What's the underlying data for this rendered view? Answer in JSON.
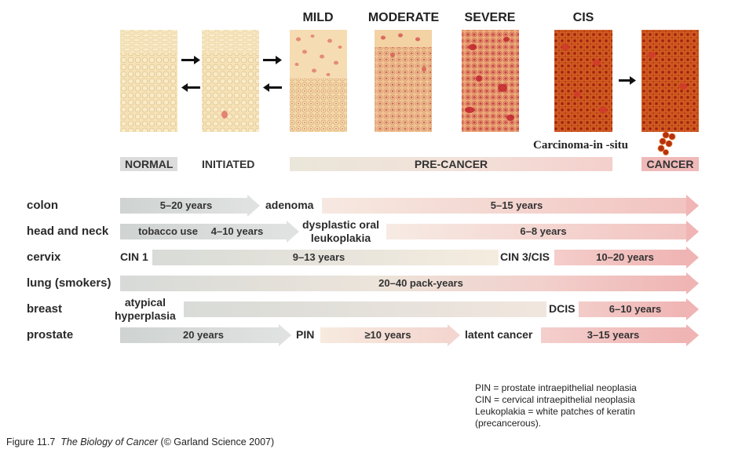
{
  "stages_top": [
    {
      "key": "mild",
      "label": "MILD"
    },
    {
      "key": "moderate",
      "label": "MODERATE"
    },
    {
      "key": "severe",
      "label": "SEVERE"
    },
    {
      "key": "cis",
      "label": "CIS"
    }
  ],
  "stage_bars": {
    "normal": "NORMAL",
    "initiated": "INITIATED",
    "pre_cancer": "PRE-CANCER",
    "cancer": "CANCER"
  },
  "cis_note": "Carcinoma-in -situ",
  "rows": {
    "colon": {
      "organ": "colon",
      "arrow1": "5–20 years",
      "marker1": "adenoma",
      "arrow2": "5–15 years"
    },
    "head_neck": {
      "organ": "head and neck",
      "arrow1_a": "tobacco use",
      "arrow1_b": "4–10 years",
      "marker1_line1": "dysplastic oral",
      "marker1_line2": "leukoplakia",
      "arrow2": "6–8 years"
    },
    "cervix": {
      "organ": "cervix",
      "marker0": "CIN 1",
      "arrow1": "9–13 years",
      "marker1": "CIN 3/CIS",
      "arrow2": "10–20 years"
    },
    "lung": {
      "organ": "lung (smokers)",
      "arrow1": "20–40 pack-years"
    },
    "breast": {
      "organ": "breast",
      "marker0_line1": "atypical",
      "marker0_line2": "hyperplasia",
      "marker1": "DCIS",
      "arrow2": "6–10 years"
    },
    "prostate": {
      "organ": "prostate",
      "arrow1": "20 years",
      "marker1": "PIN",
      "arrow2": "≥10 years",
      "marker2": "latent cancer",
      "arrow3": "3–15 years"
    }
  },
  "legend": [
    "PIN = prostate intraepithelial neoplasia",
    "CIN = cervical intraepithelial neoplasia",
    "Leukoplakia = white patches of keratin",
    "(precancerous)."
  ],
  "caption": {
    "prefix": "Figure 11.7",
    "title": "The Biology of Cancer",
    "suffix": "(© Garland Science 2007)"
  },
  "colors": {
    "normal_tissue": "#f6e1b7",
    "cis_tissue": "#b8320f",
    "cancer_arrow": "#f0b5b4",
    "grey_arrow": "#d8dbd9"
  }
}
